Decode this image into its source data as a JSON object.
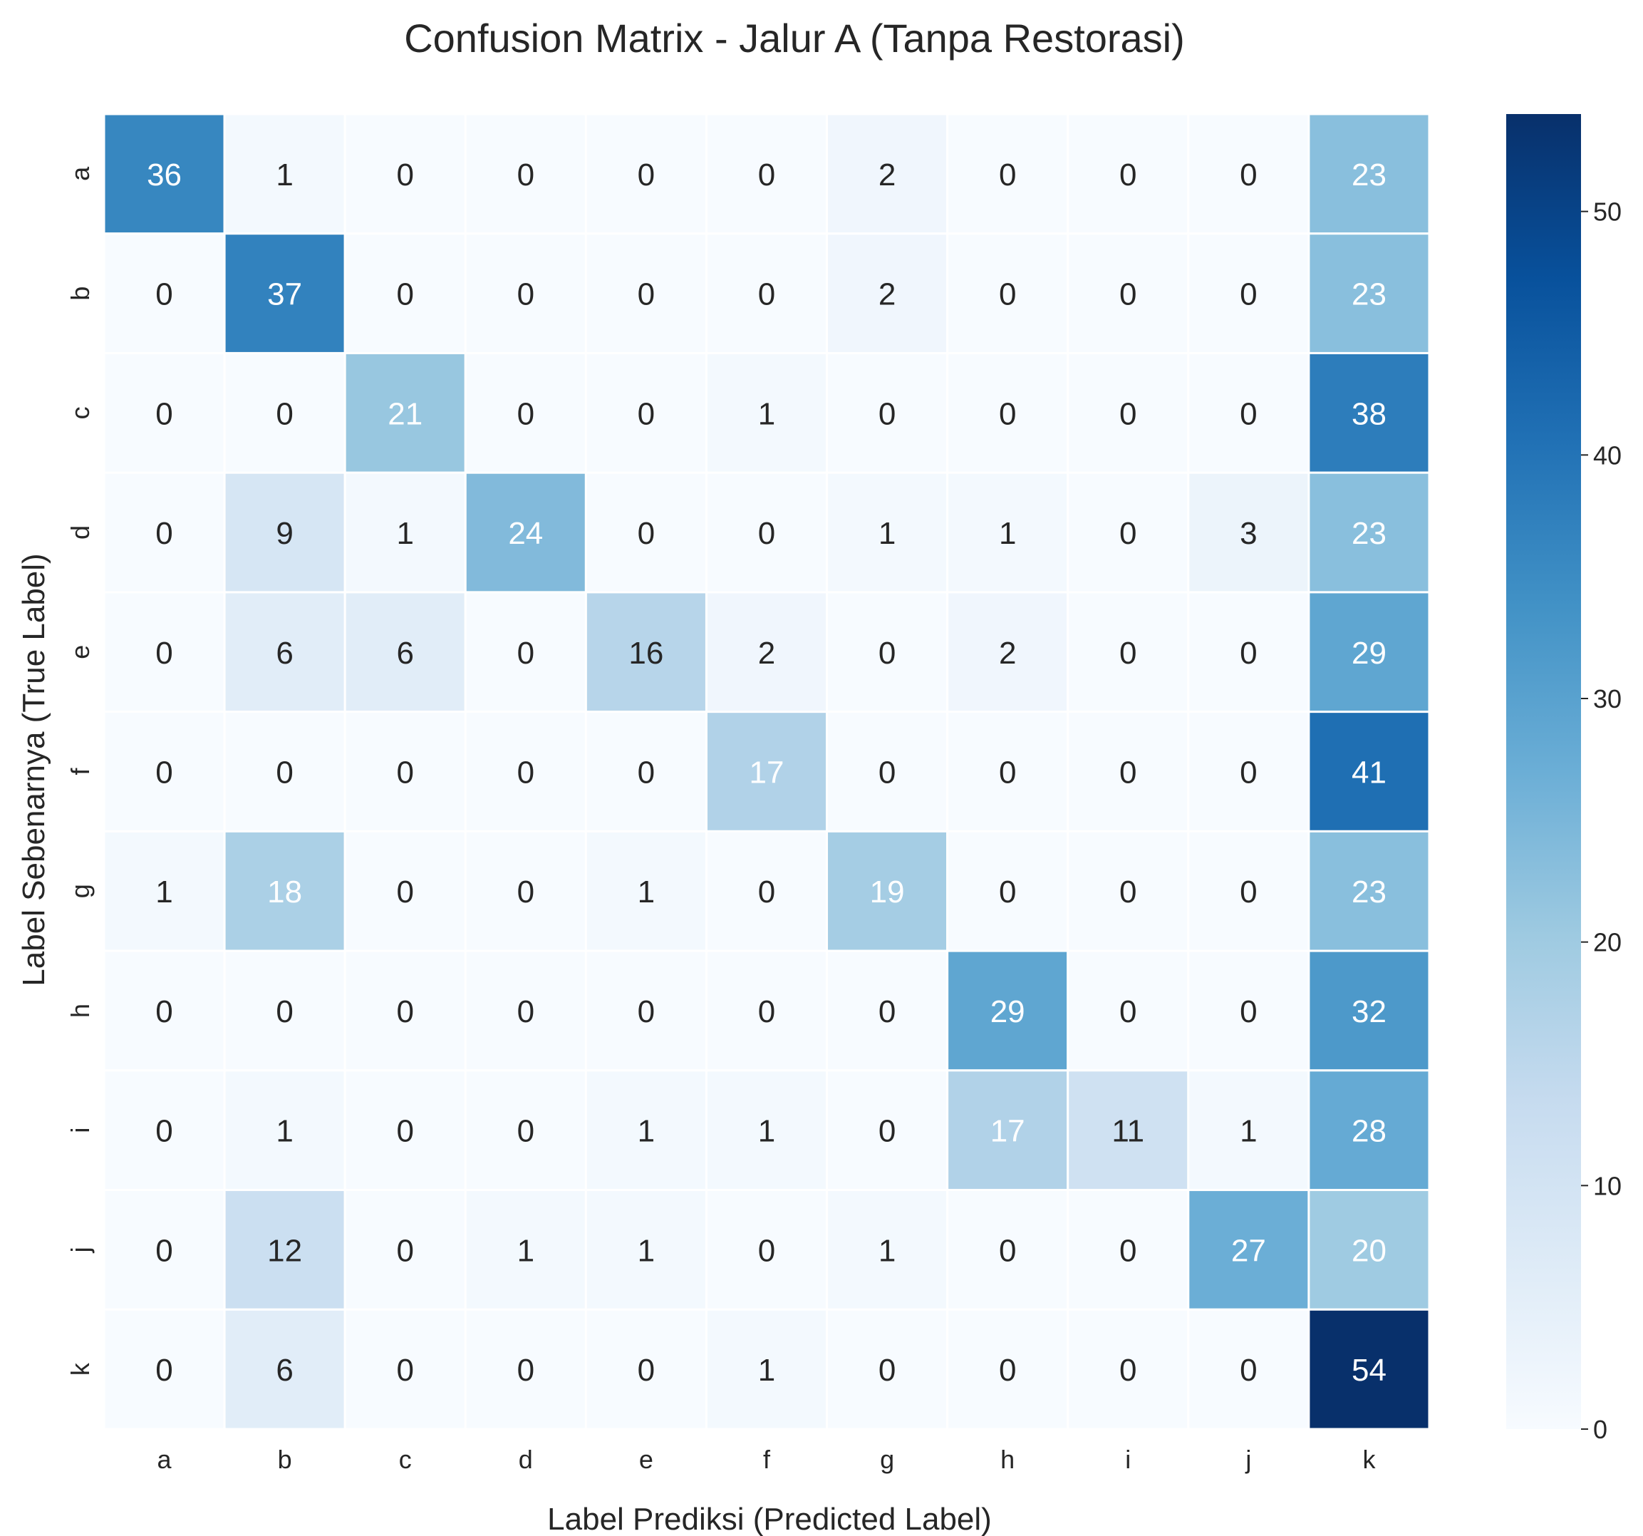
{
  "chart_data": {
    "type": "heatmap",
    "title": "Confusion Matrix - Jalur A (Tanpa Restorasi)",
    "xlabel": "Label Prediksi (Predicted Label)",
    "ylabel": "Label Sebenarnya (True Label)",
    "x_categories": [
      "a",
      "b",
      "c",
      "d",
      "e",
      "f",
      "g",
      "h",
      "i",
      "j",
      "k"
    ],
    "y_categories": [
      "a",
      "b",
      "c",
      "d",
      "e",
      "f",
      "g",
      "h",
      "i",
      "j",
      "k"
    ],
    "values": [
      [
        36,
        1,
        0,
        0,
        0,
        0,
        2,
        0,
        0,
        0,
        23
      ],
      [
        0,
        37,
        0,
        0,
        0,
        0,
        2,
        0,
        0,
        0,
        23
      ],
      [
        0,
        0,
        21,
        0,
        0,
        1,
        0,
        0,
        0,
        0,
        38
      ],
      [
        0,
        9,
        1,
        24,
        0,
        0,
        1,
        1,
        0,
        3,
        23
      ],
      [
        0,
        6,
        6,
        0,
        16,
        2,
        0,
        2,
        0,
        0,
        29
      ],
      [
        0,
        0,
        0,
        0,
        0,
        17,
        0,
        0,
        0,
        0,
        41
      ],
      [
        1,
        18,
        0,
        0,
        1,
        0,
        19,
        0,
        0,
        0,
        23
      ],
      [
        0,
        0,
        0,
        0,
        0,
        0,
        0,
        29,
        0,
        0,
        32
      ],
      [
        0,
        1,
        0,
        0,
        1,
        1,
        0,
        17,
        11,
        1,
        28
      ],
      [
        0,
        12,
        0,
        1,
        1,
        0,
        1,
        0,
        0,
        27,
        20
      ],
      [
        0,
        6,
        0,
        0,
        0,
        1,
        0,
        0,
        0,
        0,
        54
      ]
    ],
    "colormap": "Blues",
    "vmin": 0,
    "vmax": 54,
    "colorbar_ticks": [
      0,
      10,
      20,
      30,
      40,
      50
    ],
    "grid": false,
    "legend": "colorbar-right"
  }
}
